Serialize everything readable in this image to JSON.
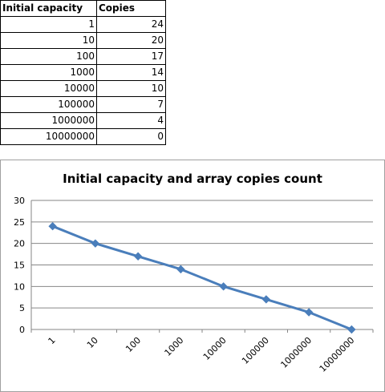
{
  "table": {
    "headers": [
      "Initial capacity",
      "Copies"
    ],
    "rows": [
      [
        "1",
        "24"
      ],
      [
        "10",
        "20"
      ],
      [
        "100",
        "17"
      ],
      [
        "1000",
        "14"
      ],
      [
        "10000",
        "10"
      ],
      [
        "100000",
        "7"
      ],
      [
        "1000000",
        "4"
      ],
      [
        "10000000",
        "0"
      ]
    ]
  },
  "chart_data": {
    "type": "line",
    "title": "Initial capacity and array copies count",
    "categories": [
      "1",
      "10",
      "100",
      "1000",
      "10000",
      "100000",
      "1000000",
      "10000000"
    ],
    "series": [
      {
        "values": [
          24,
          20,
          17,
          14,
          10,
          7,
          4,
          0
        ],
        "color": "#4a7ebb"
      }
    ],
    "yticks": [
      "0",
      "5",
      "10",
      "15",
      "20",
      "25",
      "30"
    ],
    "ylim": [
      0,
      30
    ],
    "grid": true,
    "legend": "none",
    "marker": "diamond"
  }
}
